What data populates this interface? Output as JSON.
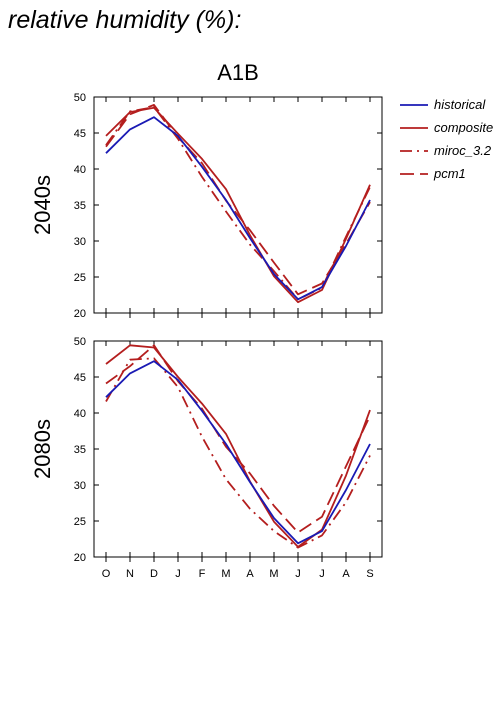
{
  "page": {
    "title": "relative humidity (%):"
  },
  "colors": {
    "historical": "#1a1ab4",
    "composite": "#b41e1e",
    "miroc_3.2": "#b41e1e",
    "pcm1": "#b41e1e"
  },
  "legend": {
    "placement": "right",
    "items": [
      {
        "name": "historical",
        "style": "solid",
        "color": "#1a1ab4"
      },
      {
        "name": "composite",
        "style": "solid",
        "color": "#b41e1e"
      },
      {
        "name": "miroc_3.2",
        "style": "dash-dot",
        "color": "#b41e1e"
      },
      {
        "name": "pcm1",
        "style": "dashed",
        "color": "#b41e1e"
      }
    ]
  },
  "chart_data": [
    {
      "type": "line",
      "title": "A1B",
      "ylabel": "2040s",
      "xlabel": "",
      "categories": [
        "O",
        "N",
        "D",
        "J",
        "F",
        "M",
        "A",
        "M",
        "J",
        "J",
        "A",
        "S"
      ],
      "ylim": [
        20,
        50
      ],
      "yticks": [
        20,
        25,
        30,
        35,
        40,
        45,
        50
      ],
      "series": [
        {
          "name": "historical",
          "values": [
            42.2,
            45.5,
            47.2,
            44.6,
            40.3,
            35.7,
            30.4,
            25.4,
            21.9,
            23.6,
            29.3,
            35.7
          ]
        },
        {
          "name": "composite",
          "values": [
            44.6,
            47.9,
            48.5,
            44.9,
            41.4,
            37.2,
            30.8,
            25.1,
            21.5,
            23.2,
            30.3,
            37.8
          ]
        },
        {
          "name": "miroc_3.2",
          "values": [
            43.3,
            48.0,
            48.6,
            44.2,
            38.9,
            34.1,
            29.5,
            25.8,
            21.9,
            23.5,
            30.6,
            37.5
          ]
        },
        {
          "name": "pcm1",
          "values": [
            43.1,
            47.6,
            48.9,
            44.4,
            40.8,
            35.6,
            31.5,
            27.0,
            22.6,
            24.1,
            29.6,
            35.4
          ]
        }
      ]
    },
    {
      "type": "line",
      "title": "",
      "ylabel": "2080s",
      "xlabel": "",
      "categories": [
        "O",
        "N",
        "D",
        "J",
        "F",
        "M",
        "A",
        "M",
        "J",
        "J",
        "A",
        "S"
      ],
      "ylim": [
        20,
        50
      ],
      "yticks": [
        20,
        25,
        30,
        35,
        40,
        45,
        50
      ],
      "series": [
        {
          "name": "historical",
          "values": [
            42.2,
            45.5,
            47.2,
            44.6,
            40.3,
            35.7,
            30.4,
            25.4,
            21.9,
            23.6,
            29.3,
            35.7
          ]
        },
        {
          "name": "composite",
          "values": [
            46.8,
            49.4,
            49.1,
            45.0,
            41.3,
            37.1,
            30.5,
            24.9,
            21.4,
            23.8,
            31.3,
            40.4
          ]
        },
        {
          "name": "miroc_3.2",
          "values": [
            41.6,
            47.4,
            47.6,
            43.6,
            36.7,
            30.8,
            26.7,
            23.6,
            21.3,
            23.0,
            27.6,
            34.1
          ]
        },
        {
          "name": "pcm1",
          "values": [
            44.1,
            46.5,
            49.4,
            44.4,
            40.6,
            35.3,
            31.6,
            27.1,
            23.4,
            25.6,
            32.6,
            39.6
          ]
        }
      ]
    }
  ]
}
